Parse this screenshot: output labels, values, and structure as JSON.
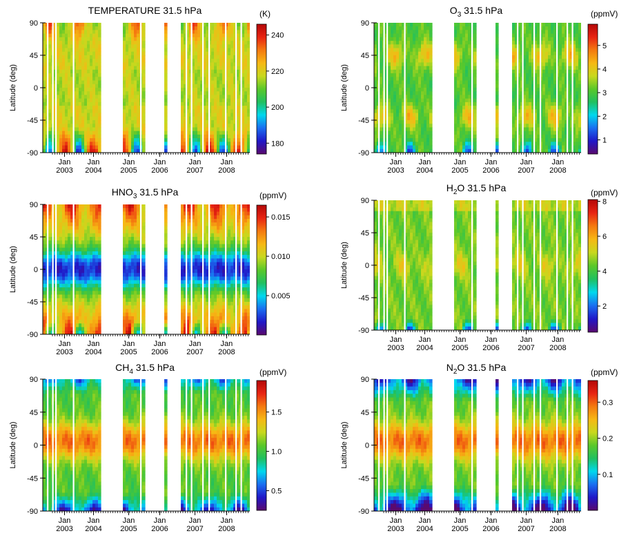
{
  "figure": {
    "colormap": [
      "#5a0a6e",
      "#2018c8",
      "#1a6ef0",
      "#00d8ee",
      "#20c060",
      "#5ac82a",
      "#c8d81e",
      "#f6b814",
      "#f47a10",
      "#e82412",
      "#b40808"
    ]
  },
  "chart_data": [
    {
      "type": "heatmap",
      "title": "TEMPERATURE 31.5 hPa",
      "ylabel": "Latitude (deg)",
      "ylim": [
        -90,
        90
      ],
      "yticks": [
        "90",
        "45",
        "0",
        "-45",
        "-90"
      ],
      "xticks": [
        {
          "month": "Jan",
          "year": "2003"
        },
        {
          "month": "Jan",
          "year": "2004"
        },
        {
          "month": "Jan",
          "year": "2005"
        },
        {
          "month": "Jan",
          "year": "2006"
        },
        {
          "month": "Jan",
          "year": "2007"
        },
        {
          "month": "Jan",
          "year": "2008"
        }
      ],
      "colorbar": {
        "unit": "(K)",
        "ticks": [
          "240",
          "220",
          "200",
          "180"
        ],
        "range": [
          174,
          246
        ]
      },
      "pattern": "temperature"
    },
    {
      "type": "heatmap",
      "title": "O3 31.5 hPa",
      "title_main": "O",
      "title_sub": "3",
      "title_rest": " 31.5 hPa",
      "ylabel": "Latitude (deg)",
      "ylim": [
        -90,
        90
      ],
      "yticks": [
        "90",
        "45",
        "0",
        "-45",
        "-90"
      ],
      "xticks": [
        {
          "month": "Jan",
          "year": "2003"
        },
        {
          "month": "Jan",
          "year": "2004"
        },
        {
          "month": "Jan",
          "year": "2005"
        },
        {
          "month": "Jan",
          "year": "2006"
        },
        {
          "month": "Jan",
          "year": "2007"
        },
        {
          "month": "Jan",
          "year": "2008"
        }
      ],
      "colorbar": {
        "unit": "(ppmV)",
        "ticks": [
          "5",
          "4",
          "3",
          "2",
          "1"
        ],
        "range": [
          0.4,
          5.9
        ]
      },
      "pattern": "ozone"
    },
    {
      "type": "heatmap",
      "title": "HNO3 31.5 hPa",
      "title_main": "HNO",
      "title_sub": "3",
      "title_rest": " 31.5 hPa",
      "ylabel": "Latitude (deg)",
      "ylim": [
        -90,
        90
      ],
      "yticks": [
        "90",
        "45",
        "0",
        "-45",
        "-90"
      ],
      "xticks": [
        {
          "month": "Jan",
          "year": "2003"
        },
        {
          "month": "Jan",
          "year": "2004"
        },
        {
          "month": "Jan",
          "year": "2005"
        },
        {
          "month": "Jan",
          "year": "2006"
        },
        {
          "month": "Jan",
          "year": "2007"
        },
        {
          "month": "Jan",
          "year": "2008"
        }
      ],
      "colorbar": {
        "unit": "(ppmV)",
        "ticks": [
          "0.015",
          "0.010",
          "0.005"
        ],
        "range": [
          0.0,
          0.0165
        ]
      },
      "pattern": "hno3"
    },
    {
      "type": "heatmap",
      "title": "H2O 31.5 hPa",
      "title_main": "H",
      "title_sub": "2",
      "title_rest": "O 31.5 hPa",
      "ylabel": "Latitude (deg)",
      "ylim": [
        -90,
        90
      ],
      "yticks": [
        "90",
        "45",
        "0",
        "-45",
        "-90"
      ],
      "xticks": [
        {
          "month": "Jan",
          "year": "2003"
        },
        {
          "month": "Jan",
          "year": "2004"
        },
        {
          "month": "Jan",
          "year": "2005"
        },
        {
          "month": "Jan",
          "year": "2006"
        },
        {
          "month": "Jan",
          "year": "2007"
        },
        {
          "month": "Jan",
          "year": "2008"
        }
      ],
      "colorbar": {
        "unit": "(ppmV)",
        "ticks": [
          "8",
          "6",
          "4",
          "2"
        ],
        "range": [
          0.5,
          8.1
        ]
      },
      "pattern": "water"
    },
    {
      "type": "heatmap",
      "title": "CH4 31.5 hPa",
      "title_main": "CH",
      "title_sub": "4",
      "title_rest": " 31.5 hPa",
      "ylabel": "Latitude (deg)",
      "ylim": [
        -90,
        90
      ],
      "yticks": [
        "90",
        "45",
        "0",
        "-45",
        "-90"
      ],
      "xticks": [
        {
          "month": "Jan",
          "year": "2003"
        },
        {
          "month": "Jan",
          "year": "2004"
        },
        {
          "month": "Jan",
          "year": "2005"
        },
        {
          "month": "Jan",
          "year": "2006"
        },
        {
          "month": "Jan",
          "year": "2007"
        },
        {
          "month": "Jan",
          "year": "2008"
        }
      ],
      "colorbar": {
        "unit": "(ppmV)",
        "ticks": [
          "1.5",
          "1.0",
          "0.5"
        ],
        "range": [
          0.25,
          1.9
        ]
      },
      "pattern": "methane"
    },
    {
      "type": "heatmap",
      "title": "N2O 31.5 hPa",
      "title_main": "N",
      "title_sub": "2",
      "title_rest": "O 31.5 hPa",
      "ylabel": "Latitude (deg)",
      "ylim": [
        -90,
        90
      ],
      "yticks": [
        "90",
        "45",
        "0",
        "-45",
        "-90"
      ],
      "xticks": [
        {
          "month": "Jan",
          "year": "2003"
        },
        {
          "month": "Jan",
          "year": "2004"
        },
        {
          "month": "Jan",
          "year": "2005"
        },
        {
          "month": "Jan",
          "year": "2006"
        },
        {
          "month": "Jan",
          "year": "2007"
        },
        {
          "month": "Jan",
          "year": "2008"
        }
      ],
      "colorbar": {
        "unit": "(ppmV)",
        "ticks": [
          "0.3",
          "0.2",
          "0.1"
        ],
        "range": [
          0.0,
          0.36
        ]
      },
      "pattern": "n2o"
    }
  ]
}
